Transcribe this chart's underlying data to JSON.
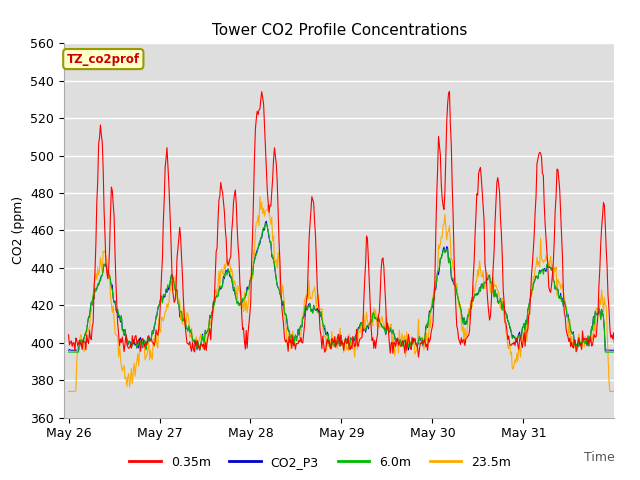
{
  "title": "Tower CO2 Profile Concentrations",
  "xlabel": "Time",
  "ylabel": "CO2 (ppm)",
  "ylim": [
    360,
    560
  ],
  "yticks": [
    360,
    380,
    400,
    420,
    440,
    460,
    480,
    500,
    520,
    540,
    560
  ],
  "series_colors": {
    "0.35m": "#ff0000",
    "CO2_P3": "#0000cd",
    "6.0m": "#00bb00",
    "23.5m": "#ffaa00"
  },
  "annotation_text": "TZ_co2prof",
  "annotation_facecolor": "#ffffcc",
  "annotation_edgecolor": "#999900",
  "annotation_textcolor": "#cc0000",
  "plot_bg_color": "#dedede",
  "n_points": 600,
  "xtick_positions": [
    0,
    1,
    2,
    3,
    4,
    5
  ],
  "xtick_labels": [
    "May 26",
    "May 27",
    "May 28",
    "May 29",
    "May 30",
    "May 31"
  ]
}
